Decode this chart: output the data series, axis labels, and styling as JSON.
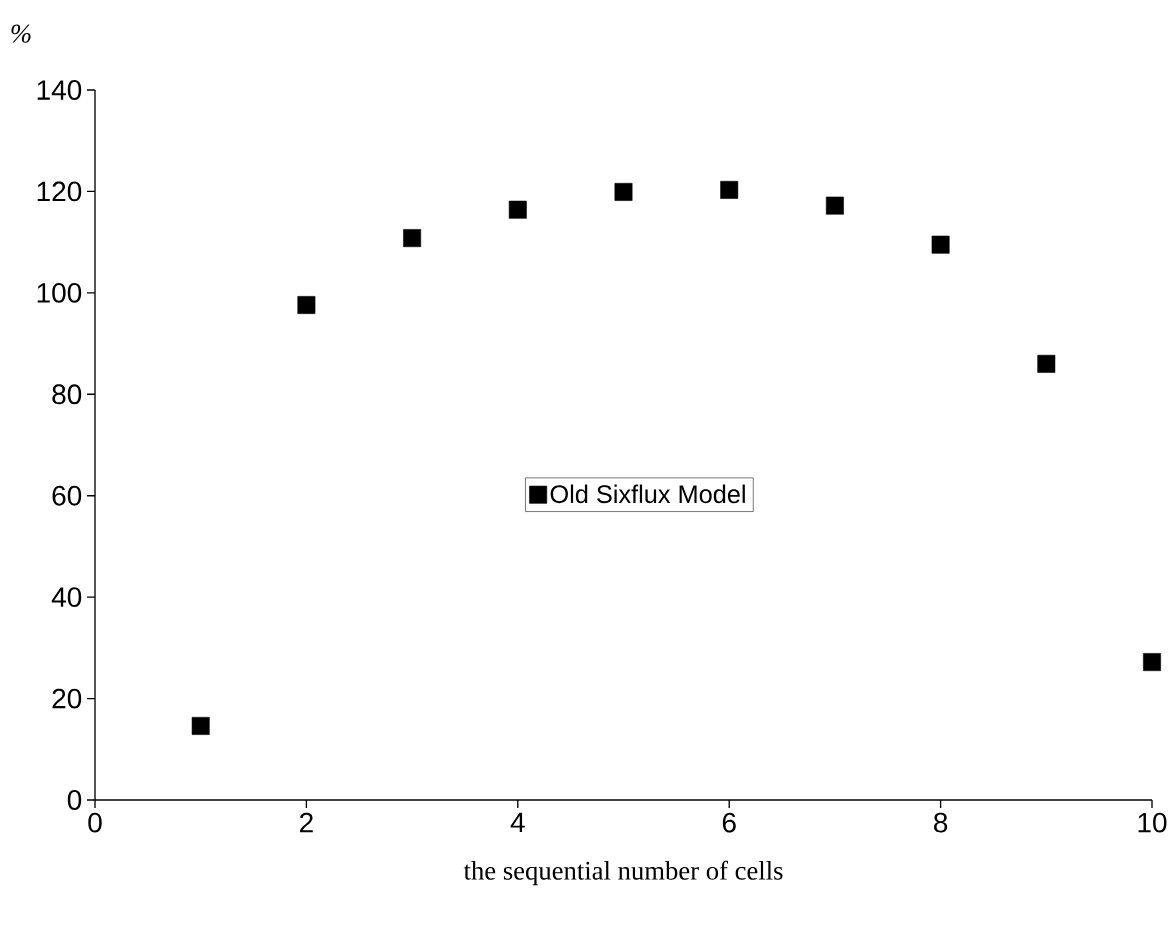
{
  "chart_data": {
    "type": "scatter",
    "xlabel": "the sequential number of cells",
    "ylabel": "%",
    "x": [
      1,
      2,
      3,
      4,
      5,
      6,
      7,
      8,
      9,
      10
    ],
    "series": [
      {
        "name": "Old Sixflux Model",
        "color": "#000000",
        "values": [
          14.6,
          97.6,
          110.8,
          116.4,
          119.9,
          120.3,
          117.2,
          109.5,
          86.0,
          27.2
        ]
      }
    ],
    "xlim": [
      0,
      10
    ],
    "ylim": [
      0,
      140
    ],
    "xticks": [
      0,
      2,
      4,
      6,
      8,
      10
    ],
    "yticks": [
      0,
      20,
      40,
      60,
      80,
      100,
      120,
      140
    ],
    "marker": "square",
    "legend": "center",
    "grid": false
  }
}
